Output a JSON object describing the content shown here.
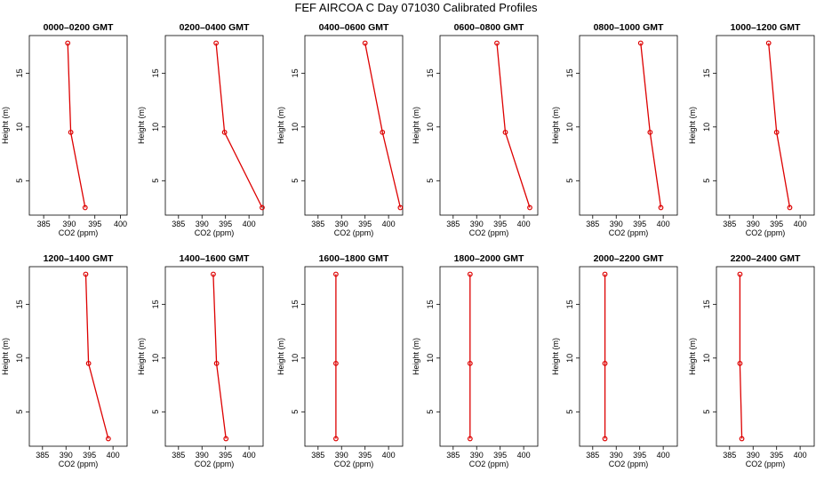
{
  "title": "FEF AIRCOA C  Day 071030  Calibrated Profiles",
  "colors": {
    "series": "#dd0000",
    "axis": "#000000",
    "background": "#ffffff"
  },
  "chart_data": {
    "type": "line",
    "shared": {
      "xlabel": "CO2 (ppm)",
      "ylabel": "Height (m)",
      "xticks": [
        385,
        390,
        395,
        400
      ],
      "yticks": [
        5,
        10,
        15
      ],
      "heights": [
        2.5,
        9.5,
        17.8
      ]
    },
    "panels": [
      {
        "title": "0000–0200 GMT",
        "xlim": [
          382.2,
          401.3
        ],
        "ylim": [
          1.8,
          18.5
        ],
        "co2": [
          393.1,
          390.3,
          389.7
        ]
      },
      {
        "title": "0200–0400 GMT",
        "xlim": [
          382.2,
          403.0
        ],
        "ylim": [
          1.8,
          18.5
        ],
        "co2": [
          402.8,
          394.8,
          393.0
        ]
      },
      {
        "title": "0400–0600 GMT",
        "xlim": [
          382.2,
          403.0
        ],
        "ylim": [
          1.8,
          18.5
        ],
        "co2": [
          402.5,
          398.7,
          395.0
        ]
      },
      {
        "title": "0600–0800 GMT",
        "xlim": [
          382.2,
          403.0
        ],
        "ylim": [
          1.8,
          18.5
        ],
        "co2": [
          401.3,
          396.1,
          394.3
        ]
      },
      {
        "title": "0800–1000 GMT",
        "xlim": [
          382.2,
          403.0
        ],
        "ylim": [
          1.8,
          18.5
        ],
        "co2": [
          399.5,
          397.2,
          395.2
        ]
      },
      {
        "title": "1000–1200 GMT",
        "xlim": [
          382.2,
          403.0
        ],
        "ylim": [
          1.8,
          18.5
        ],
        "co2": [
          397.8,
          395.0,
          393.3
        ]
      },
      {
        "title": "1200–1400 GMT",
        "xlim": [
          382.2,
          403.0
        ],
        "ylim": [
          1.8,
          18.5
        ],
        "co2": [
          399.0,
          394.8,
          394.2
        ]
      },
      {
        "title": "1400–1600 GMT",
        "xlim": [
          382.2,
          403.0
        ],
        "ylim": [
          1.8,
          18.5
        ],
        "co2": [
          395.1,
          393.1,
          392.4
        ]
      },
      {
        "title": "1600–1800 GMT",
        "xlim": [
          382.2,
          403.0
        ],
        "ylim": [
          1.8,
          18.5
        ],
        "co2": [
          388.8,
          388.8,
          388.8
        ]
      },
      {
        "title": "1800–2000 GMT",
        "xlim": [
          382.2,
          403.0
        ],
        "ylim": [
          1.8,
          18.5
        ],
        "co2": [
          388.6,
          388.6,
          388.6
        ]
      },
      {
        "title": "2000–2200 GMT",
        "xlim": [
          382.2,
          403.0
        ],
        "ylim": [
          1.8,
          18.5
        ],
        "co2": [
          387.6,
          387.6,
          387.6
        ]
      },
      {
        "title": "2200–2400 GMT",
        "xlim": [
          382.2,
          403.0
        ],
        "ylim": [
          1.8,
          18.5
        ],
        "co2": [
          387.6,
          387.2,
          387.2
        ]
      }
    ]
  }
}
